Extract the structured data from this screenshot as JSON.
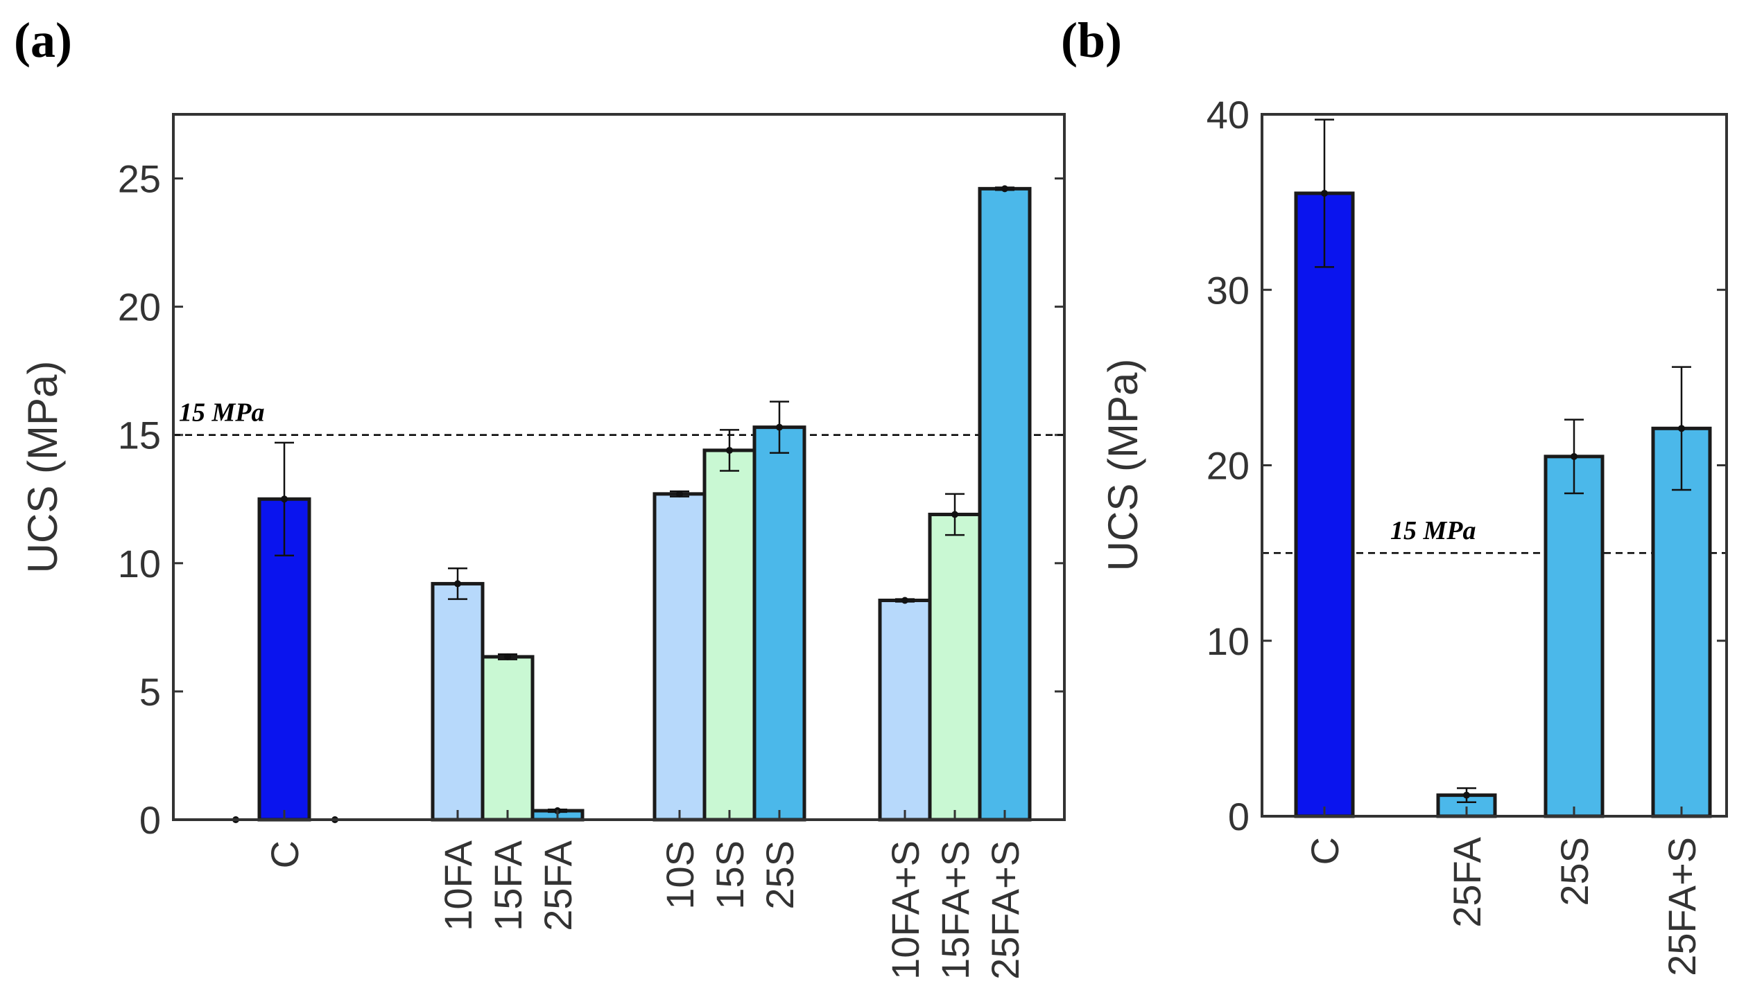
{
  "chart_data": [
    {
      "panel_label": "(a)",
      "type": "bar",
      "ylabel": "UCS (MPa)",
      "ylim": [
        0,
        27.5
      ],
      "yticks": [
        "0",
        "5",
        "10",
        "15",
        "20",
        "25"
      ],
      "reference_line": {
        "value": 15,
        "label": "15 MPa",
        "style": "dashed"
      },
      "groups": [
        {
          "bars": [
            {
              "label": "C",
              "value": 12.5,
              "error": 2.2,
              "color": "#0a14ee"
            }
          ]
        },
        {
          "bars": [
            {
              "label": "10FA",
              "value": 9.2,
              "error": 0.6,
              "color": "#b7d9fb"
            },
            {
              "label": "15FA",
              "value": 6.35,
              "error": 0.1,
              "color": "#c9f8d3"
            },
            {
              "label": "25FA",
              "value": 0.35,
              "error": 0.05,
              "color": "#4bb8ea"
            }
          ]
        },
        {
          "bars": [
            {
              "label": "10S",
              "value": 12.7,
              "error": 0.1,
              "color": "#b7d9fb"
            },
            {
              "label": "15S",
              "value": 14.4,
              "error": 0.8,
              "color": "#c9f8d3"
            },
            {
              "label": "25S",
              "value": 15.3,
              "error": 1.0,
              "color": "#4bb8ea"
            }
          ]
        },
        {
          "bars": [
            {
              "label": "10FA+S",
              "value": 8.55,
              "error": 0.05,
              "color": "#b7d9fb"
            },
            {
              "label": "15FA+S",
              "value": 11.9,
              "error": 0.8,
              "color": "#c9f8d3"
            },
            {
              "label": "25FA+S",
              "value": 24.6,
              "error": 0.05,
              "color": "#4bb8ea"
            }
          ]
        }
      ]
    },
    {
      "panel_label": "(b)",
      "type": "bar",
      "ylabel": "UCS (MPa)",
      "ylim": [
        0,
        40
      ],
      "yticks": [
        "0",
        "10",
        "20",
        "30",
        "40"
      ],
      "reference_line": {
        "value": 15,
        "label": "15 MPa",
        "style": "dashed"
      },
      "bars": [
        {
          "label": "C",
          "value": 35.5,
          "error": 4.2,
          "color": "#0a14ee"
        },
        {
          "label": "25FA",
          "value": 1.2,
          "error": 0.4,
          "color": "#4bb8ea"
        },
        {
          "label": "25S",
          "value": 20.5,
          "error": 2.1,
          "color": "#4bb8ea"
        },
        {
          "label": "25FA+S",
          "value": 22.1,
          "error": 3.5,
          "color": "#4bb8ea"
        }
      ]
    }
  ]
}
